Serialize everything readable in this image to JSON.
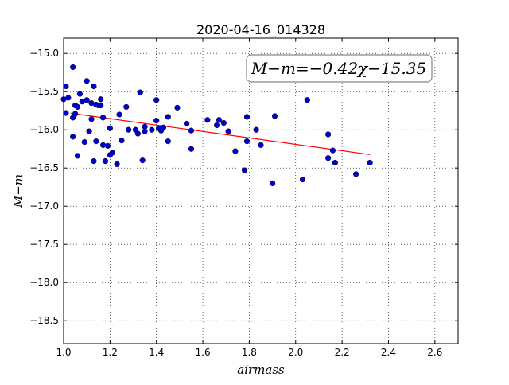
{
  "chart_data": {
    "type": "scatter",
    "title": "2020-04-16_014328",
    "xlabel": "airmass",
    "ylabel": "M−m",
    "xlim": [
      1.0,
      2.7
    ],
    "ylim": [
      -18.8,
      -14.8
    ],
    "x_ticks": [
      "1.0",
      "1.2",
      "1.4",
      "1.6",
      "1.8",
      "2.0",
      "2.2",
      "2.4",
      "2.6"
    ],
    "y_ticks": [
      "−15.0",
      "−15.5",
      "−16.0",
      "−16.5",
      "−17.0",
      "−17.5",
      "−18.0",
      "−18.5"
    ],
    "grid": true,
    "annotation": "M−m=−0.42χ−15.35",
    "colors": {
      "points": "#0000cc",
      "fit": "#ff0000"
    },
    "fit_line": {
      "slope": -0.42,
      "intercept": -15.35,
      "x_range": [
        1.03,
        2.32
      ]
    },
    "points": {
      "x": [
        1.0,
        1.01,
        1.01,
        1.02,
        1.04,
        1.05,
        1.05,
        1.04,
        1.04,
        1.06,
        1.06,
        1.07,
        1.08,
        1.09,
        1.1,
        1.1,
        1.11,
        1.12,
        1.12,
        1.13,
        1.13,
        1.14,
        1.14,
        1.15,
        1.16,
        1.16,
        1.17,
        1.17,
        1.18,
        1.19,
        1.2,
        1.2,
        1.21,
        1.23,
        1.24,
        1.25,
        1.27,
        1.28,
        1.31,
        1.32,
        1.33,
        1.34,
        1.35,
        1.35,
        1.38,
        1.4,
        1.4,
        1.41,
        1.42,
        1.43,
        1.45,
        1.45,
        1.49,
        1.53,
        1.55,
        1.55,
        1.62,
        1.66,
        1.67,
        1.69,
        1.71,
        1.74,
        1.78,
        1.79,
        1.79,
        1.83,
        1.85,
        1.9,
        1.91,
        2.03,
        2.05,
        2.14,
        2.14,
        2.16,
        2.17,
        2.26,
        2.32
      ],
      "y": [
        -15.6,
        -15.43,
        -15.78,
        -15.58,
        -15.18,
        -15.68,
        -15.79,
        -15.84,
        -16.09,
        -15.7,
        -16.34,
        -15.53,
        -15.63,
        -16.16,
        -15.36,
        -15.61,
        -16.02,
        -15.65,
        -15.86,
        -16.41,
        -15.43,
        -15.67,
        -16.15,
        -15.68,
        -15.6,
        -15.68,
        -15.84,
        -16.2,
        -16.41,
        -16.21,
        -15.98,
        -16.33,
        -16.3,
        -16.45,
        -15.8,
        -16.14,
        -15.7,
        -16.0,
        -16.0,
        -16.05,
        -15.51,
        -16.4,
        -15.96,
        -16.02,
        -16.0,
        -15.61,
        -15.88,
        -15.98,
        -16.01,
        -15.97,
        -15.83,
        -16.15,
        -15.71,
        -15.92,
        -16.01,
        -16.25,
        -15.87,
        -15.94,
        -15.87,
        -15.91,
        -16.02,
        -16.28,
        -16.53,
        -16.15,
        -15.83,
        -16.0,
        -16.2,
        -16.7,
        -15.82,
        -16.65,
        -15.61,
        -16.37,
        -16.06,
        -16.27,
        -16.43,
        -16.58,
        -16.43
      ]
    }
  }
}
